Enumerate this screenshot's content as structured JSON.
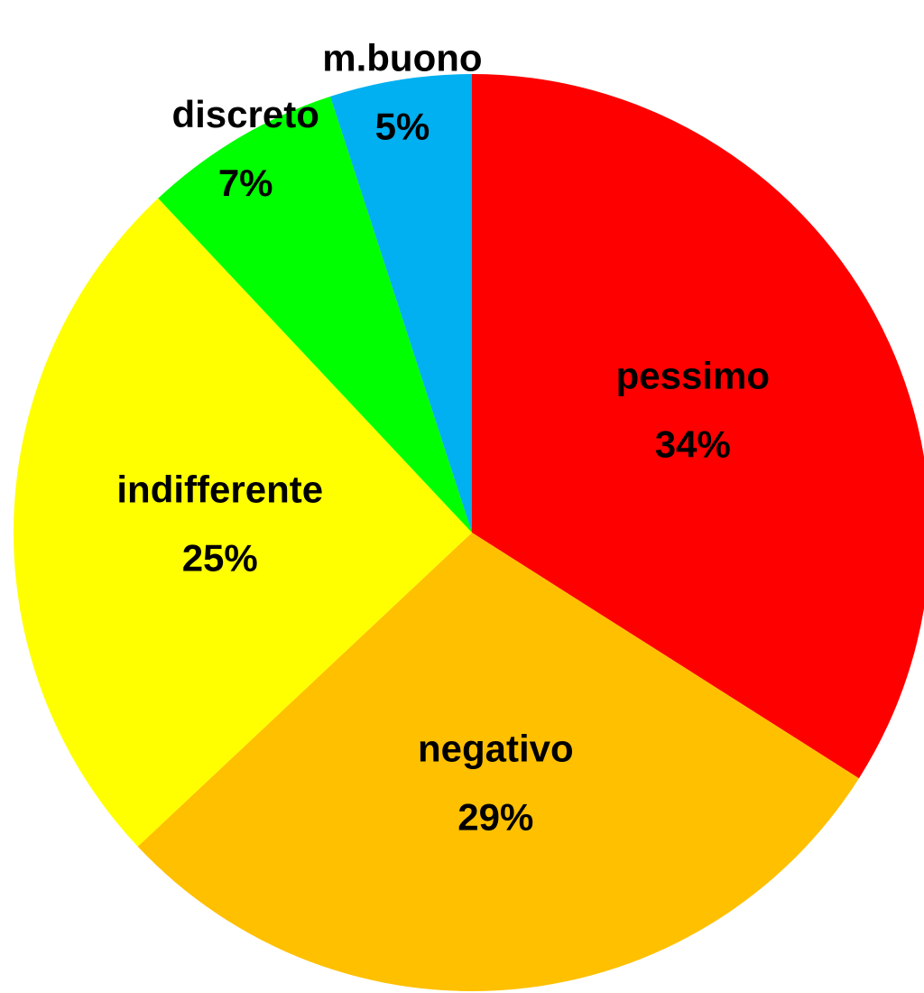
{
  "chart_data": {
    "type": "pie",
    "categories": [
      "pessimo",
      "negativo",
      "indifferente",
      "discreto",
      "m.buono"
    ],
    "values": [
      34,
      29,
      25,
      7,
      5
    ],
    "value_labels": [
      "34%",
      "29%",
      "25%",
      "7%",
      "5%"
    ],
    "colors": [
      "#ff0000",
      "#ffc000",
      "#ffff00",
      "#00ff00",
      "#00b0f0"
    ]
  }
}
